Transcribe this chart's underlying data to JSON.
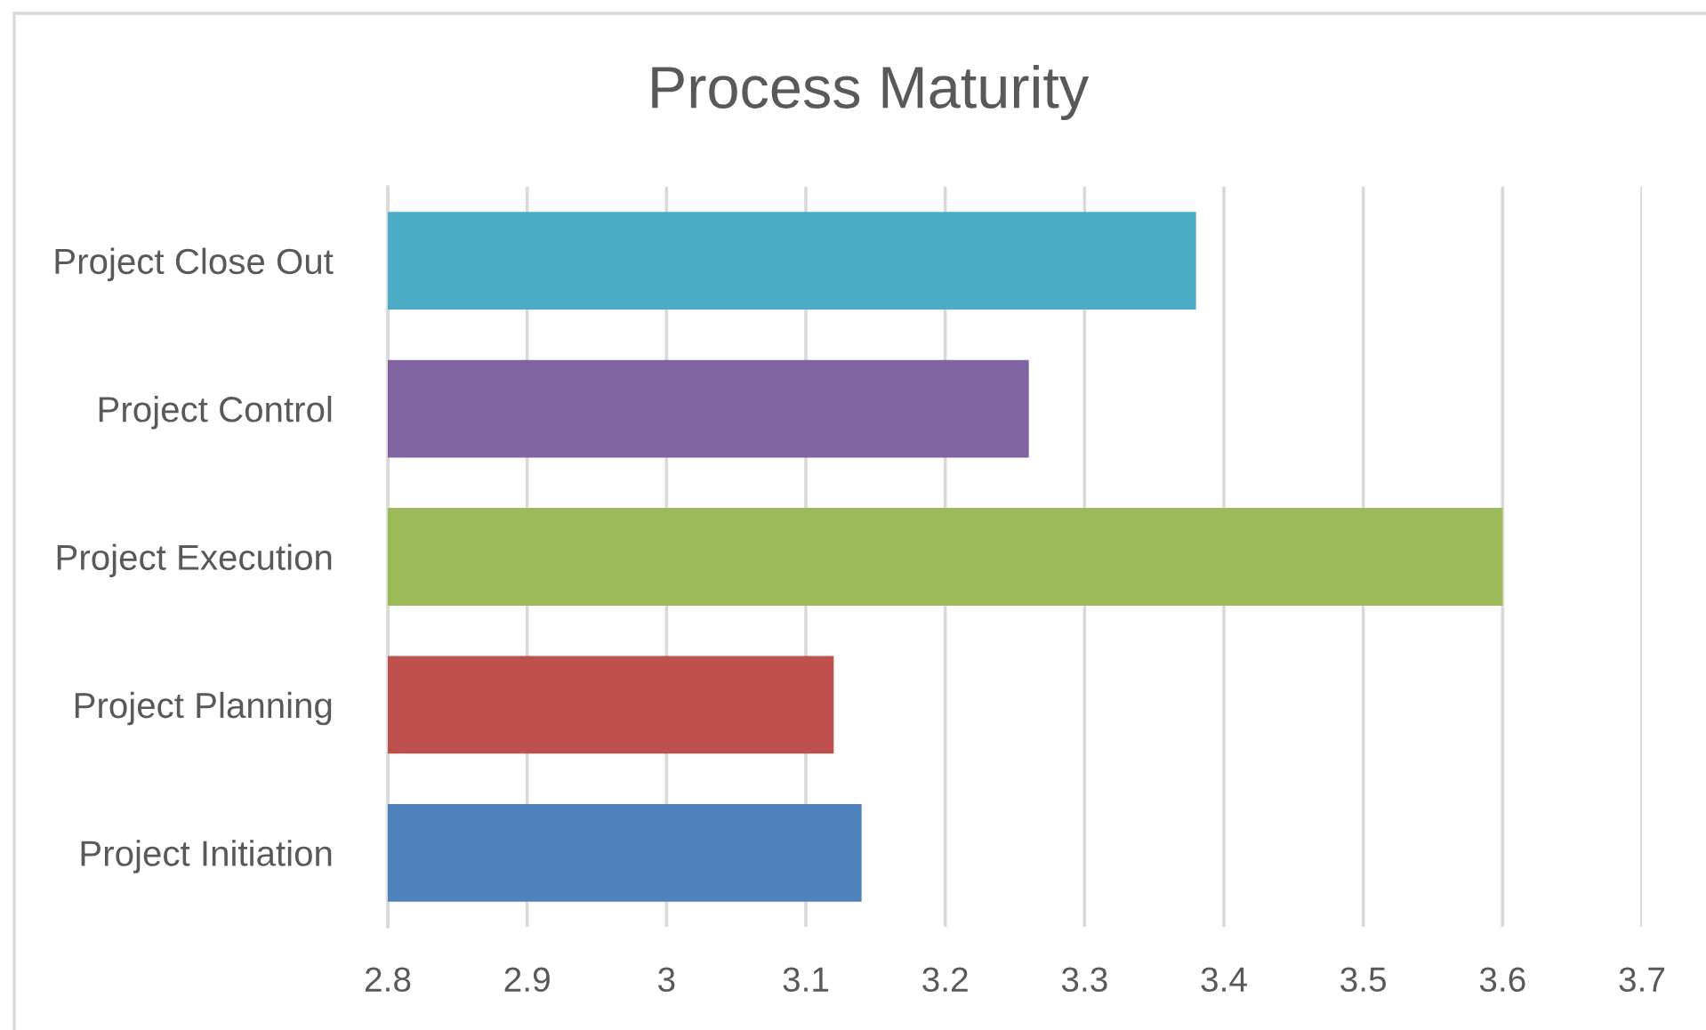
{
  "chart_data": {
    "type": "bar",
    "orientation": "horizontal",
    "title": "Process Maturity",
    "categories": [
      "Project Close Out",
      "Project Control",
      "Project Execution",
      "Project Planning",
      "Project Initiation"
    ],
    "values": [
      3.38,
      3.26,
      3.6,
      3.12,
      3.14
    ],
    "colors": [
      "#4bacc6",
      "#8064a2",
      "#9bbb59",
      "#c0504d",
      "#4f81bd"
    ],
    "xlim": [
      2.8,
      3.7
    ],
    "xticks": [
      2.8,
      2.9,
      3,
      3.1,
      3.2,
      3.3,
      3.4,
      3.5,
      3.6,
      3.7
    ],
    "grid": "x",
    "legend": false
  }
}
